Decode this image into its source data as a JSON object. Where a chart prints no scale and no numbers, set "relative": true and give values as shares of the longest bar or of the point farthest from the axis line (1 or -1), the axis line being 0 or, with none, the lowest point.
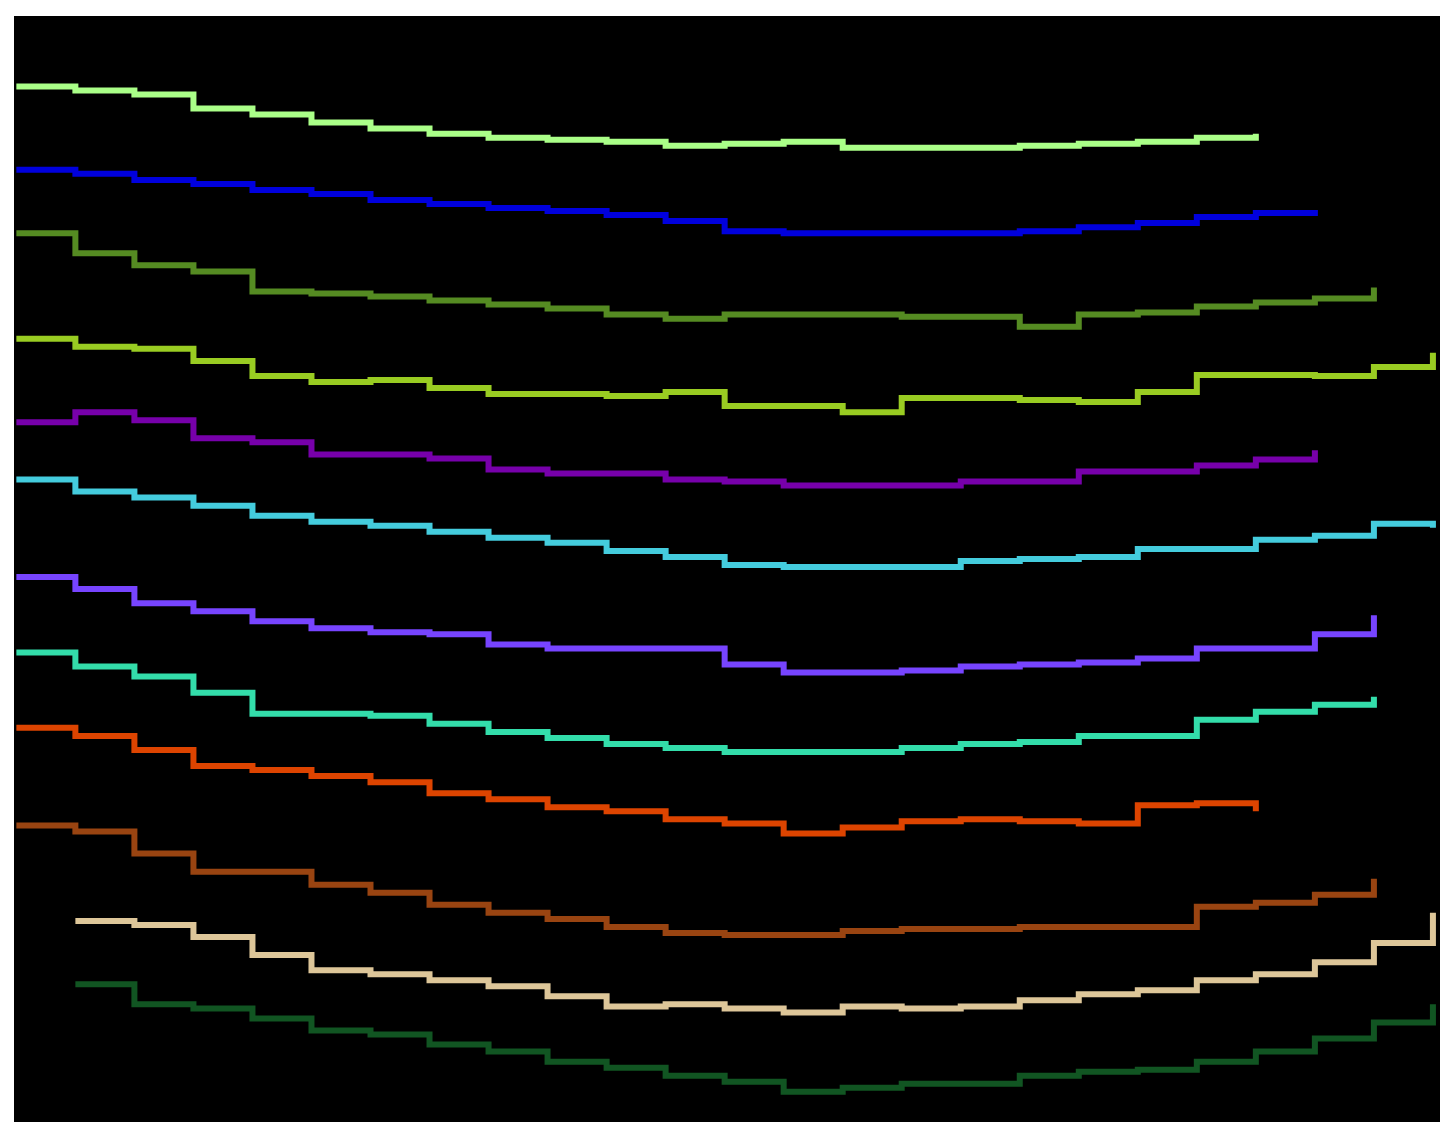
{
  "chart_data": {
    "type": "step",
    "relative": true,
    "marker": "none",
    "line_style": "solid",
    "categories": [
      null,
      null,
      null,
      null,
      null,
      null,
      null,
      null,
      null,
      null,
      null,
      null,
      null,
      null,
      null,
      null,
      null,
      null,
      null,
      null,
      null,
      null,
      null,
      null,
      null
    ],
    "series": [
      {
        "color": "#aaff88",
        "values": [
          1.0,
          0.996,
          0.992,
          0.978,
          0.972,
          0.964,
          0.958,
          0.953,
          0.949,
          0.947,
          0.945,
          0.941,
          0.943,
          0.945,
          0.939,
          0.939,
          0.939,
          0.941,
          0.943,
          0.945,
          0.949,
          0.953,
          null,
          null,
          null
        ]
      },
      {
        "color": "#0000dd",
        "values": [
          0.917,
          0.913,
          0.907,
          0.903,
          0.897,
          0.893,
          0.887,
          0.883,
          0.879,
          0.876,
          0.872,
          0.866,
          0.856,
          0.854,
          0.854,
          0.854,
          0.854,
          0.856,
          0.86,
          0.864,
          0.87,
          0.874,
          0.877,
          null,
          null
        ]
      },
      {
        "color": "#558b22",
        "values": [
          0.854,
          0.834,
          0.822,
          0.816,
          0.796,
          0.794,
          0.791,
          0.787,
          0.783,
          0.779,
          0.773,
          0.769,
          0.773,
          0.773,
          0.773,
          0.771,
          0.771,
          0.761,
          0.773,
          0.775,
          0.781,
          0.785,
          0.789,
          0.8,
          null
        ]
      },
      {
        "color": "#99cc22",
        "values": [
          0.749,
          0.741,
          0.739,
          0.727,
          0.712,
          0.706,
          0.708,
          0.7,
          0.694,
          0.694,
          0.692,
          0.696,
          0.682,
          0.682,
          0.676,
          0.69,
          0.69,
          0.688,
          0.686,
          0.696,
          0.713,
          0.713,
          0.712,
          0.721,
          0.735
        ]
      },
      {
        "color": "#7700aa",
        "values": [
          0.666,
          0.676,
          0.668,
          0.65,
          0.646,
          0.634,
          0.634,
          0.63,
          0.619,
          0.615,
          0.615,
          0.609,
          0.607,
          0.603,
          0.603,
          0.603,
          0.607,
          0.607,
          0.617,
          0.617,
          0.623,
          0.629,
          0.638,
          null,
          null
        ]
      },
      {
        "color": "#44ccdd",
        "values": [
          0.609,
          0.597,
          0.591,
          0.583,
          0.573,
          0.567,
          0.563,
          0.557,
          0.551,
          0.546,
          0.538,
          0.532,
          0.524,
          0.522,
          0.522,
          0.522,
          0.528,
          0.53,
          0.532,
          0.54,
          0.54,
          0.549,
          0.553,
          0.565,
          0.561
        ]
      },
      {
        "color": "#7744ff",
        "values": [
          0.512,
          0.5,
          0.486,
          0.478,
          0.468,
          0.461,
          0.457,
          0.455,
          0.445,
          0.441,
          0.441,
          0.441,
          0.425,
          0.417,
          0.417,
          0.419,
          0.423,
          0.425,
          0.427,
          0.431,
          0.441,
          0.441,
          0.455,
          0.474,
          null
        ]
      },
      {
        "color": "#33ddaa",
        "values": [
          0.437,
          0.423,
          0.413,
          0.397,
          0.376,
          0.376,
          0.374,
          0.366,
          0.358,
          0.352,
          0.346,
          0.342,
          0.338,
          0.338,
          0.338,
          0.342,
          0.346,
          0.348,
          0.354,
          0.354,
          0.37,
          0.378,
          0.385,
          0.393,
          null
        ]
      },
      {
        "color": "#dd4400",
        "values": [
          0.362,
          0.354,
          0.34,
          0.324,
          0.32,
          0.314,
          0.308,
          0.297,
          0.291,
          0.283,
          0.279,
          0.271,
          0.267,
          0.257,
          0.263,
          0.269,
          0.271,
          0.269,
          0.267,
          0.285,
          0.287,
          0.279,
          null,
          null,
          null
        ]
      },
      {
        "color": "#994411",
        "values": [
          0.265,
          0.259,
          0.237,
          0.219,
          0.219,
          0.206,
          0.198,
          0.186,
          0.178,
          0.172,
          0.164,
          0.158,
          0.156,
          0.156,
          0.16,
          0.162,
          0.162,
          0.164,
          0.164,
          0.164,
          0.184,
          0.188,
          0.196,
          0.212,
          null
        ]
      },
      {
        "color": "#ddc699",
        "values": [
          null,
          0.17,
          0.166,
          0.154,
          0.136,
          0.121,
          0.117,
          0.111,
          0.105,
          0.095,
          0.085,
          0.087,
          0.083,
          0.079,
          0.085,
          0.083,
          0.085,
          0.091,
          0.097,
          0.101,
          0.111,
          0.117,
          0.129,
          0.148,
          0.178
        ]
      },
      {
        "color": "#115522",
        "values": [
          null,
          0.107,
          0.087,
          0.083,
          0.073,
          0.061,
          0.057,
          0.047,
          0.04,
          0.03,
          0.024,
          0.016,
          0.01,
          0.0,
          0.004,
          0.008,
          0.008,
          0.016,
          0.02,
          0.022,
          0.03,
          0.04,
          0.053,
          0.069,
          0.087
        ]
      }
    ]
  }
}
